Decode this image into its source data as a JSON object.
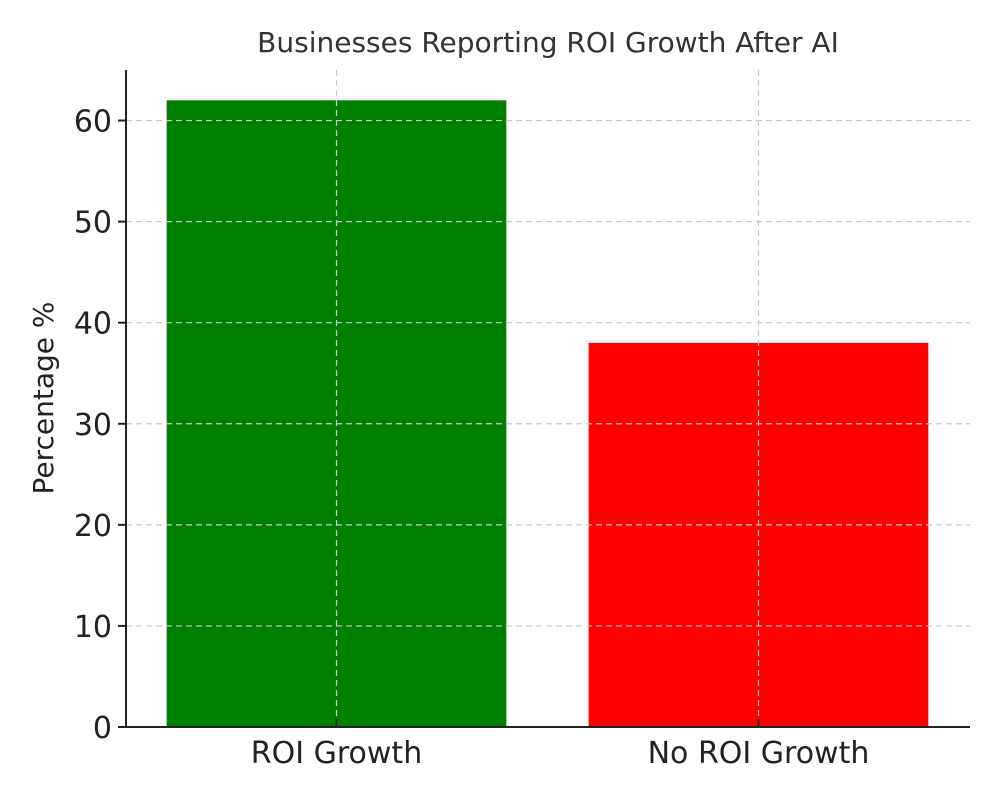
{
  "chart_data": {
    "type": "bar",
    "title": "Businesses Reporting ROI Growth After AI",
    "xlabel": "",
    "ylabel": "Percentage %",
    "categories": [
      "ROI Growth",
      "No ROI Growth"
    ],
    "values": [
      62,
      38
    ],
    "colors": [
      "#008000",
      "#ff0000"
    ],
    "ylim": [
      0,
      65
    ],
    "yticks": [
      0,
      10,
      20,
      30,
      40,
      50,
      60
    ],
    "grid": true,
    "grid_style": "dashed"
  }
}
